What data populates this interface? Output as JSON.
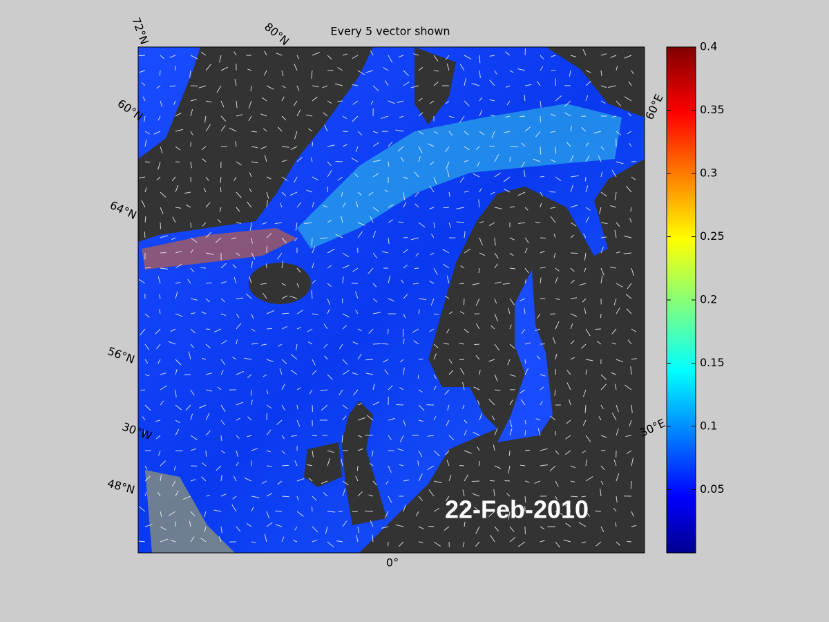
{
  "title": "Every 5 vector shown",
  "date": "22-Feb-2010",
  "map_labels": {
    "lat": [
      "72°N",
      "80°N",
      "60°N",
      "64°N",
      "56°N",
      "48°N"
    ],
    "lon": [
      "30°W",
      "0°",
      "30°E",
      "60°E"
    ]
  },
  "chart_data": {
    "type": "colorbar",
    "clim": [
      0,
      0.4
    ],
    "ticks": [
      0.05,
      0.1,
      0.15,
      0.2,
      0.25,
      0.3,
      0.35,
      0.4
    ]
  }
}
